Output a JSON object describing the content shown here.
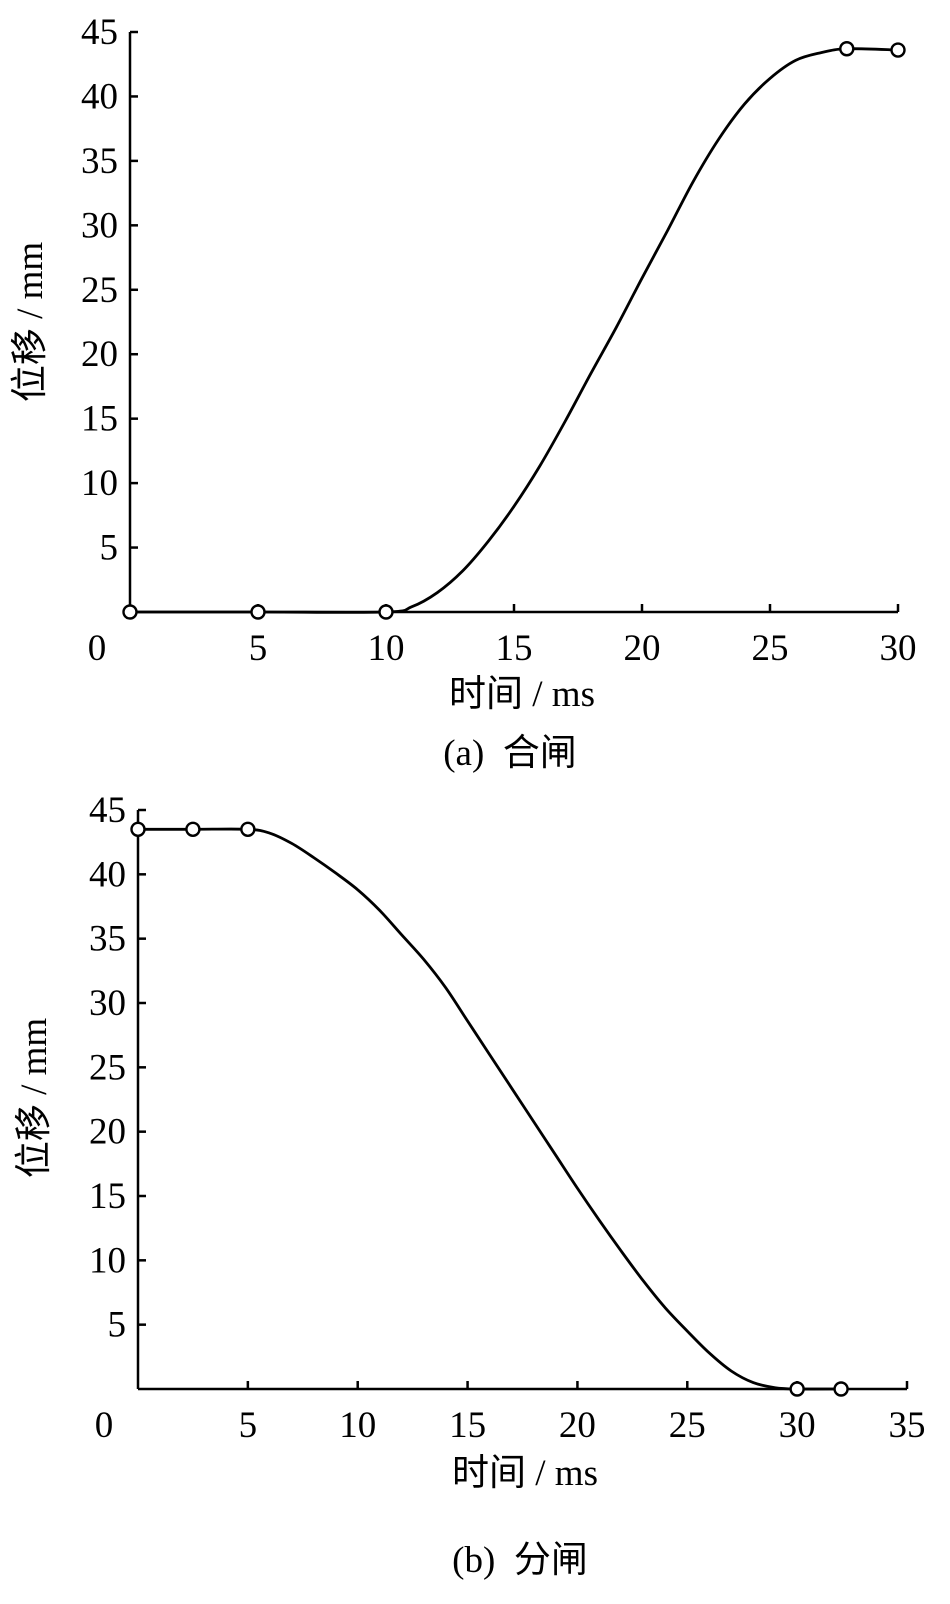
{
  "chart_data": [
    {
      "type": "line",
      "caption": "(a)  合闸",
      "xlabel": "时间 / ms",
      "ylabel": "位移 / mm",
      "origin_label": "0",
      "xlim": [
        0,
        30
      ],
      "ylim": [
        0,
        45
      ],
      "xticks": [
        5,
        10,
        15,
        20,
        25,
        30
      ],
      "yticks": [
        5,
        10,
        15,
        20,
        25,
        30,
        35,
        40,
        45
      ],
      "series": [
        {
          "x": [
            0,
            5,
            10,
            11,
            12,
            13,
            14,
            15,
            16,
            17,
            18,
            19,
            20,
            21,
            22,
            23,
            24,
            25,
            26,
            27,
            28,
            30
          ],
          "y": [
            0,
            0,
            0,
            0.4,
            1.5,
            3.2,
            5.5,
            8.2,
            11.3,
            14.8,
            18.5,
            22.1,
            25.9,
            29.6,
            33.4,
            36.7,
            39.4,
            41.4,
            42.8,
            43.4,
            43.7,
            43.6
          ],
          "markers": [
            [
              0,
              0
            ],
            [
              5,
              0
            ],
            [
              10,
              0
            ],
            [
              28,
              43.7
            ],
            [
              30,
              43.6
            ]
          ]
        }
      ]
    },
    {
      "type": "line",
      "caption": "(b)  分闸",
      "xlabel": "时间 / ms",
      "ylabel": "位移 / mm",
      "origin_label": "0",
      "xlim": [
        0,
        35
      ],
      "ylim": [
        0,
        45
      ],
      "xticks": [
        5,
        10,
        15,
        20,
        25,
        30,
        35
      ],
      "yticks": [
        5,
        10,
        15,
        20,
        25,
        30,
        35,
        40,
        45
      ],
      "series": [
        {
          "x": [
            0,
            2.5,
            5,
            6,
            7,
            8,
            9,
            10,
            11,
            12,
            13,
            14,
            15,
            16,
            17,
            18,
            19,
            20,
            21,
            22,
            23,
            24,
            25,
            26,
            27,
            28,
            29,
            30,
            32
          ],
          "y": [
            43.5,
            43.5,
            43.5,
            43.2,
            42.4,
            41.3,
            40.1,
            38.8,
            37.2,
            35.3,
            33.4,
            31.2,
            28.6,
            26.0,
            23.4,
            20.8,
            18.2,
            15.6,
            13.1,
            10.7,
            8.4,
            6.3,
            4.5,
            2.8,
            1.4,
            0.5,
            0.1,
            0,
            0
          ],
          "markers": [
            [
              0,
              43.5
            ],
            [
              2.5,
              43.5
            ],
            [
              5,
              43.5
            ],
            [
              30,
              0
            ],
            [
              32,
              0
            ]
          ]
        }
      ]
    }
  ]
}
